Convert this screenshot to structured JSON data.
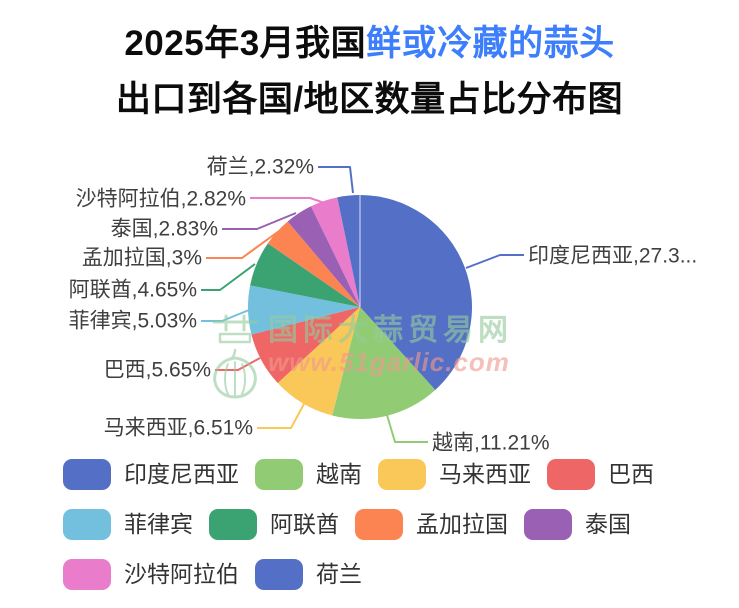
{
  "title": {
    "line1_black": "2025年3月我国",
    "line1_blue": "鲜或冷藏的蒜头",
    "line2": "出口到各国/地区数量占比分布图",
    "accent_color": "#3d7efc",
    "text_color": "#0c0c0c"
  },
  "watermark": {
    "logo_icon": "garlic-bulb-logo",
    "line1": "国际大蒜贸易网",
    "line2": "www.51garlic.com",
    "line1_color": "#95cb9d",
    "line2_color": "#f2998f"
  },
  "chart_data": {
    "type": "pie",
    "title": "2025年3月我国鲜或冷藏的蒜头出口到各国/地区数量占比分布图",
    "legend_position": "bottom-left",
    "values_are_percent": true,
    "start_angle_deg": 0,
    "direction": "clockwise",
    "items": [
      {
        "label": "印度尼西亚",
        "value": 27.3,
        "callout": "印度尼西亚,27.3...",
        "color": "#5470c6"
      },
      {
        "label": "越南",
        "value": 11.21,
        "callout": "越南,11.21%",
        "color": "#91cc75"
      },
      {
        "label": "马来西亚",
        "value": 6.51,
        "callout": "马来西亚,6.51%",
        "color": "#fac858"
      },
      {
        "label": "巴西",
        "value": 5.65,
        "callout": "巴西,5.65%",
        "color": "#ee6666"
      },
      {
        "label": "菲律宾",
        "value": 5.03,
        "callout": "菲律宾,5.03%",
        "color": "#73c0de"
      },
      {
        "label": "阿联酋",
        "value": 4.65,
        "callout": "阿联酋,4.65%",
        "color": "#3ba272"
      },
      {
        "label": "孟加拉国",
        "value": 3,
        "callout": "孟加拉国,3%",
        "color": "#fc8452"
      },
      {
        "label": "泰国",
        "value": 2.83,
        "callout": "泰国,2.83%",
        "color": "#9a60b4"
      },
      {
        "label": "沙特阿拉伯",
        "value": 2.82,
        "callout": "沙特阿拉伯,2.82%",
        "color": "#ea7ccc"
      },
      {
        "label": "荷兰",
        "value": 2.32,
        "callout": "荷兰,2.32%",
        "color": "#5470c6"
      }
    ]
  }
}
